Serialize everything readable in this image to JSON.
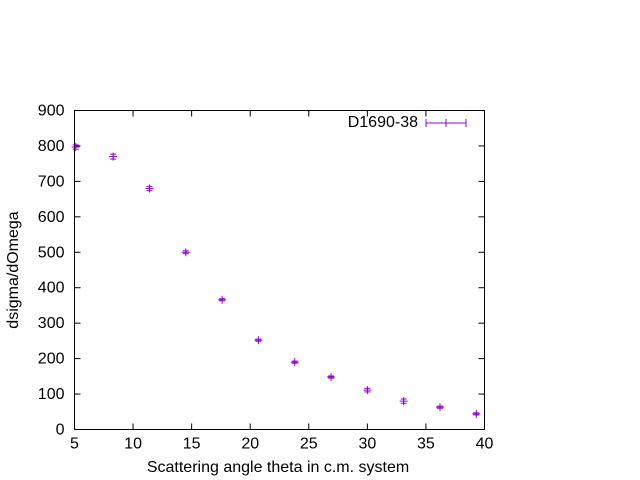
{
  "chart_data": {
    "type": "scatter",
    "title": "",
    "xlabel": "Scattering angle theta in c.m. system",
    "ylabel": "dsigma/dOmega",
    "xlim": [
      5,
      40
    ],
    "ylim": [
      0,
      900
    ],
    "xticks": [
      5,
      10,
      15,
      20,
      25,
      30,
      35,
      40
    ],
    "yticks": [
      0,
      100,
      200,
      300,
      400,
      500,
      600,
      700,
      800,
      900
    ],
    "grid": false,
    "legend_position": "top-right",
    "series": [
      {
        "name": "D1690-38",
        "color": "#9400d3",
        "marker": "plus",
        "error_bars": true,
        "points": [
          {
            "x": 5.1,
            "y": 797,
            "err": 6
          },
          {
            "x": 8.3,
            "y": 770,
            "err": 7
          },
          {
            "x": 11.4,
            "y": 680,
            "err": 6
          },
          {
            "x": 14.5,
            "y": 500,
            "err": 4
          },
          {
            "x": 17.6,
            "y": 366,
            "err": 3
          },
          {
            "x": 20.7,
            "y": 252,
            "err": 3
          },
          {
            "x": 23.8,
            "y": 190,
            "err": 3
          },
          {
            "x": 26.9,
            "y": 148,
            "err": 3
          },
          {
            "x": 30.0,
            "y": 111,
            "err": 5
          },
          {
            "x": 33.1,
            "y": 80,
            "err": 6
          },
          {
            "x": 36.2,
            "y": 63,
            "err": 3
          },
          {
            "x": 39.3,
            "y": 44,
            "err": 3
          }
        ]
      }
    ]
  }
}
